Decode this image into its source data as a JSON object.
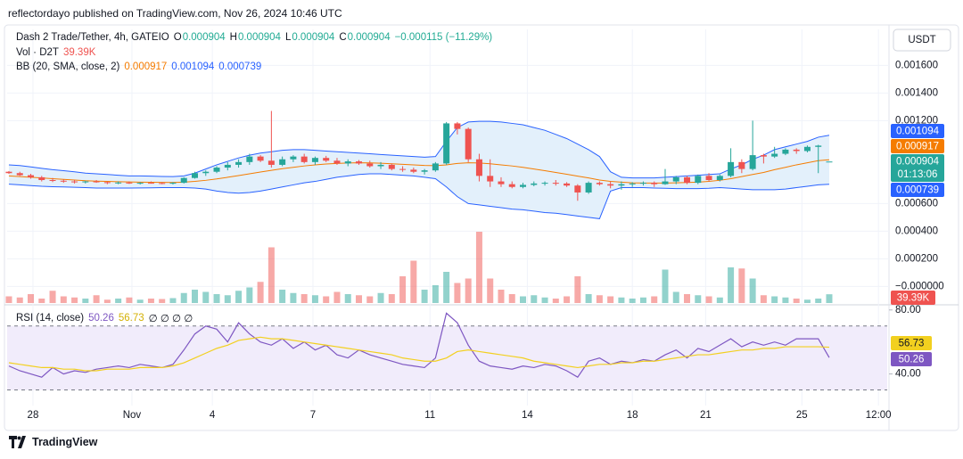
{
  "header": {
    "published": "reflectordayo published on TradingView.com, Nov 26, 2024 10:46 UTC"
  },
  "footer": {
    "brand": "TradingView"
  },
  "chart_data": [
    {
      "type": "candlestick",
      "title": "Dash 2 Trade/Tether, 4h, GATEIO",
      "ohlc_labels": [
        "O",
        "H",
        "L",
        "C"
      ],
      "change": "−0.000115 (−11.29%)",
      "currency": "USDT",
      "countdown": "01:13:06",
      "up_color": "#26a69a",
      "down_color": "#ef5350",
      "grid": true,
      "xlim": [
        -0.16,
        80.3
      ],
      "xticks": [
        {
          "value": 2.2,
          "label": "28"
        },
        {
          "value": 11.25,
          "label": "Nov"
        },
        {
          "value": 18.6,
          "label": "4"
        },
        {
          "value": 27.8,
          "label": "7"
        },
        {
          "value": 38.5,
          "label": "11"
        },
        {
          "value": 47.4,
          "label": "14"
        },
        {
          "value": 57.0,
          "label": "18"
        },
        {
          "value": 63.7,
          "label": "21"
        },
        {
          "value": 72.5,
          "label": "25"
        },
        {
          "value": 79.5,
          "label": "12:00"
        }
      ],
      "ylim": [
        -0.00012,
        0.00186
      ],
      "yticks": [
        {
          "value": 0.0016,
          "label": "0.001600"
        },
        {
          "value": 0.0014,
          "label": "0.001400"
        },
        {
          "value": 0.0012,
          "label": "0.001200"
        },
        {
          "value": 0.0006,
          "label": "0.000600"
        },
        {
          "value": 0.0004,
          "label": "0.000400"
        },
        {
          "value": 0.0002,
          "label": "0.000200"
        },
        {
          "value": 0,
          "label": "−0.000000"
        }
      ],
      "candles": {
        "open": [
          0.00083,
          0.00082,
          0.000805,
          0.00079,
          0.00077,
          0.000765,
          0.00076,
          0.000755,
          0.00076,
          0.000755,
          0.000748,
          0.000752,
          0.000745,
          0.00075,
          0.000748,
          0.000745,
          0.00075,
          0.000785,
          0.00082,
          0.00083,
          0.00086,
          0.00088,
          0.0009,
          0.00094,
          0.00091,
          0.00088,
          0.00092,
          0.00094,
          0.0009,
          0.00093,
          0.00091,
          0.00089,
          0.000905,
          0.00089,
          0.00087,
          0.00088,
          0.00085,
          0.000845,
          0.00083,
          0.00084,
          0.00089,
          0.00118,
          0.00114,
          0.00092,
          0.0008,
          0.00076,
          0.00074,
          0.00072,
          0.000735,
          0.000745,
          0.00075,
          0.000745,
          0.00073,
          0.00068,
          0.00075,
          0.00074,
          0.00073,
          0.00074,
          0.000745,
          0.00075,
          0.00074,
          0.00076,
          0.00079,
          0.00075,
          0.0008,
          0.00077,
          0.0008,
          0.0009,
          0.00085,
          0.00095,
          0.00094,
          0.00096,
          0.00099,
          0.00098,
          0.00101,
          0.000904
        ],
        "high": [
          0.000835,
          0.00083,
          0.000815,
          0.0008,
          0.000785,
          0.000775,
          0.00077,
          0.000765,
          0.00077,
          0.00076,
          0.00076,
          0.00076,
          0.000755,
          0.00076,
          0.000755,
          0.000755,
          0.00079,
          0.00083,
          0.00084,
          0.00087,
          0.0009,
          0.00092,
          0.00096,
          0.00095,
          0.00127,
          0.00094,
          0.00095,
          0.00096,
          0.00094,
          0.000945,
          0.00093,
          0.00092,
          0.000915,
          0.00091,
          0.0009,
          0.00089,
          0.00087,
          0.00086,
          0.00085,
          0.0009,
          0.00119,
          0.00119,
          0.00115,
          0.00096,
          0.00092,
          0.00079,
          0.00076,
          0.00075,
          0.00076,
          0.00076,
          0.00077,
          0.000755,
          0.00074,
          0.00076,
          0.00076,
          0.00076,
          0.00076,
          0.000755,
          0.00076,
          0.00076,
          0.00085,
          0.0008,
          0.0008,
          0.00081,
          0.00082,
          0.00081,
          0.001,
          0.00092,
          0.0012,
          0.00096,
          0.00101,
          0.001,
          0.001,
          0.00102,
          0.001025,
          0.000904
        ],
        "low": [
          0.000815,
          0.0008,
          0.00078,
          0.00076,
          0.000755,
          0.00075,
          0.000745,
          0.000745,
          0.00075,
          0.00074,
          0.00074,
          0.000742,
          0.000738,
          0.000745,
          0.00074,
          0.000738,
          0.000745,
          0.00078,
          0.0008,
          0.00082,
          0.00084,
          0.00086,
          0.00088,
          0.0009,
          0.00086,
          0.00087,
          0.0009,
          0.00089,
          0.00088,
          0.0009,
          0.00088,
          0.00087,
          0.00088,
          0.00086,
          0.00085,
          0.00084,
          0.00083,
          0.00082,
          0.00081,
          0.00083,
          0.00088,
          0.0011,
          0.0009,
          0.00076,
          0.00072,
          0.00072,
          0.00071,
          0.00071,
          0.000725,
          0.00073,
          0.00073,
          0.00072,
          0.00062,
          0.00067,
          0.00073,
          0.00071,
          0.0007,
          0.00072,
          0.00073,
          0.00072,
          0.000735,
          0.00074,
          0.00074,
          0.00074,
          0.00076,
          0.00076,
          0.00079,
          0.00082,
          0.00084,
          0.00089,
          0.00093,
          0.00095,
          0.00096,
          0.00097,
          0.00082,
          0.000904
        ],
        "close": [
          0.00082,
          0.000805,
          0.00079,
          0.00077,
          0.000765,
          0.00076,
          0.000755,
          0.00076,
          0.000755,
          0.000748,
          0.000752,
          0.000745,
          0.00075,
          0.000748,
          0.000745,
          0.00075,
          0.000785,
          0.00082,
          0.00083,
          0.00086,
          0.00088,
          0.0009,
          0.00094,
          0.00091,
          0.00088,
          0.00092,
          0.00094,
          0.0009,
          0.00093,
          0.00091,
          0.00089,
          0.000905,
          0.00089,
          0.00087,
          0.00088,
          0.00085,
          0.000845,
          0.00083,
          0.00084,
          0.00089,
          0.00118,
          0.00114,
          0.00092,
          0.0008,
          0.00076,
          0.00074,
          0.00072,
          0.000735,
          0.000745,
          0.00075,
          0.000745,
          0.00073,
          0.00068,
          0.00075,
          0.00074,
          0.00073,
          0.00074,
          0.000745,
          0.00075,
          0.00074,
          0.00076,
          0.00079,
          0.00075,
          0.0008,
          0.00077,
          0.0008,
          0.0009,
          0.00085,
          0.00095,
          0.00094,
          0.00096,
          0.00099,
          0.00098,
          0.00101,
          0.001019,
          0.000904
        ]
      },
      "volume": {
        "name": "Vol · D2T",
        "last_label": "39.39K",
        "values": [
          30000,
          25000,
          40000,
          20000,
          55000,
          30000,
          25000,
          20000,
          35000,
          15000,
          20000,
          25000,
          15000,
          20000,
          18000,
          22000,
          45000,
          60000,
          50000,
          40000,
          35000,
          55000,
          70000,
          95000,
          250000,
          60000,
          45000,
          40000,
          35000,
          30000,
          50000,
          40000,
          35000,
          30000,
          45000,
          40000,
          120000,
          190000,
          60000,
          80000,
          140000,
          90000,
          110000,
          320000,
          110000,
          60000,
          40000,
          30000,
          35000,
          25000,
          20000,
          30000,
          120000,
          40000,
          35000,
          30000,
          25000,
          20000,
          25000,
          30000,
          150000,
          50000,
          40000,
          35000,
          30000,
          25000,
          160000,
          155000,
          110000,
          35000,
          30000,
          25000,
          20000,
          15000,
          20000,
          39390
        ]
      },
      "bands": {
        "name": "BB (20, SMA, close, 2)",
        "fill": "#e3f0fb",
        "basis": {
          "color": "#f57c00",
          "values": [
            0.0008,
            0.000795,
            0.00079,
            0.000785,
            0.00078,
            0.000775,
            0.00077,
            0.000765,
            0.000762,
            0.00076,
            0.000758,
            0.000756,
            0.000755,
            0.000754,
            0.000753,
            0.000752,
            0.000755,
            0.00076,
            0.000768,
            0.000778,
            0.00079,
            0.000802,
            0.000815,
            0.000828,
            0.00084,
            0.000852,
            0.000862,
            0.000872,
            0.00088,
            0.000886,
            0.00089,
            0.000893,
            0.000895,
            0.000894,
            0.000892,
            0.000888,
            0.000884,
            0.00088,
            0.000876,
            0.000874,
            0.00088,
            0.00089,
            0.000895,
            0.000893,
            0.000888,
            0.00088,
            0.000872,
            0.000862,
            0.00085,
            0.000838,
            0.000825,
            0.000812,
            0.000798,
            0.000785,
            0.00077,
            0.00076,
            0.000755,
            0.00075,
            0.000748,
            0.000748,
            0.000748,
            0.00075,
            0.000752,
            0.000755,
            0.00076,
            0.000768,
            0.00078,
            0.000795,
            0.00081,
            0.000825,
            0.000845,
            0.000862,
            0.00088,
            0.000895,
            0.00091,
            0.000917
          ]
        },
        "upper": {
          "color": "#2962ff",
          "values": [
            0.00088,
            0.000875,
            0.000865,
            0.000855,
            0.000845,
            0.000838,
            0.00083,
            0.00082,
            0.000815,
            0.00081,
            0.000805,
            0.0008,
            0.0008,
            0.000798,
            0.000796,
            0.000795,
            0.0008,
            0.00082,
            0.00085,
            0.00088,
            0.000905,
            0.00093,
            0.00095,
            0.000965,
            0.000975,
            0.000985,
            0.00099,
            0.00099,
            0.000985,
            0.00098,
            0.000975,
            0.00097,
            0.000965,
            0.00096,
            0.000955,
            0.00095,
            0.000945,
            0.00094,
            0.000935,
            0.00094,
            0.00105,
            0.00115,
            0.00119,
            0.001195,
            0.001195,
            0.00119,
            0.00118,
            0.00117,
            0.00115,
            0.00113,
            0.0011,
            0.00107,
            0.00103,
            0.00099,
            0.00094,
            0.00083,
            0.00079,
            0.000785,
            0.000785,
            0.000785,
            0.00079,
            0.000795,
            0.0008,
            0.000805,
            0.00081,
            0.000815,
            0.00085,
            0.00088,
            0.00092,
            0.00095,
            0.00099,
            0.00101,
            0.00103,
            0.00105,
            0.00108,
            0.001094
          ]
        },
        "lower": {
          "color": "#2962ff",
          "values": [
            0.00074,
            0.000735,
            0.00073,
            0.000725,
            0.000722,
            0.00072,
            0.000718,
            0.000715,
            0.000712,
            0.000712,
            0.000712,
            0.000712,
            0.000713,
            0.000714,
            0.000715,
            0.000715,
            0.000715,
            0.000712,
            0.000705,
            0.00069,
            0.00068,
            0.000675,
            0.00068,
            0.00069,
            0.000705,
            0.00072,
            0.000735,
            0.00075,
            0.00076,
            0.000775,
            0.00079,
            0.0008,
            0.00081,
            0.000815,
            0.000815,
            0.00081,
            0.000805,
            0.0008,
            0.00079,
            0.00078,
            0.00072,
            0.00065,
            0.0006,
            0.00059,
            0.00058,
            0.00057,
            0.00056,
            0.000555,
            0.000545,
            0.000535,
            0.00053,
            0.00052,
            0.00051,
            0.0005,
            0.00049,
            0.00069,
            0.000715,
            0.000715,
            0.000715,
            0.000712,
            0.00071,
            0.000708,
            0.000708,
            0.000708,
            0.00071,
            0.000715,
            0.00071,
            0.000705,
            0.0007,
            0.0007,
            0.0007,
            0.000705,
            0.000715,
            0.000725,
            0.000735,
            0.000739
          ]
        }
      }
    },
    {
      "type": "line",
      "title": "RSI (14, close)",
      "placeholders": "∅ ∅ ∅ ∅",
      "xlim": [
        -0.16,
        80.3
      ],
      "ylim": [
        20.27,
        82.67
      ],
      "yticks": [
        {
          "value": 80,
          "label": "80.00"
        },
        {
          "value": 40,
          "label": "40.00"
        }
      ],
      "band": [
        30,
        70
      ],
      "band_fill": "#f1ecfb",
      "series": [
        {
          "color": "#7e57c2",
          "values": [
            45,
            42,
            40,
            38,
            44,
            40,
            42,
            41,
            43,
            44,
            45,
            44,
            46,
            45,
            44,
            46,
            55,
            65,
            70,
            68,
            60,
            72,
            65,
            60,
            58,
            62,
            56,
            60,
            55,
            58,
            52,
            50,
            55,
            52,
            50,
            48,
            46,
            45,
            44,
            50,
            78,
            72,
            58,
            48,
            45,
            44,
            43,
            45,
            44,
            46,
            45,
            42,
            38,
            48,
            50,
            46,
            48,
            47,
            49,
            48,
            52,
            55,
            50,
            56,
            54,
            58,
            62,
            57,
            60,
            58,
            60,
            58,
            62,
            62,
            62,
            50.26
          ]
        },
        {
          "color": "#f2d01f",
          "values": [
            47,
            46,
            45,
            44,
            44,
            43,
            43,
            42,
            42,
            43,
            43,
            43,
            44,
            44,
            44,
            45,
            47,
            50,
            53,
            56,
            58,
            61,
            62,
            63,
            62,
            62,
            61,
            60,
            59,
            58,
            57,
            56,
            55,
            54,
            53,
            52,
            50,
            49,
            48,
            48,
            50,
            54,
            55,
            54,
            53,
            52,
            51,
            50,
            48,
            47,
            46,
            45,
            44,
            45,
            46,
            46,
            47,
            47,
            48,
            48,
            49,
            50,
            51,
            52,
            52,
            53,
            54,
            55,
            55,
            56,
            56,
            57,
            57,
            57,
            57,
            56.73
          ]
        }
      ]
    }
  ]
}
